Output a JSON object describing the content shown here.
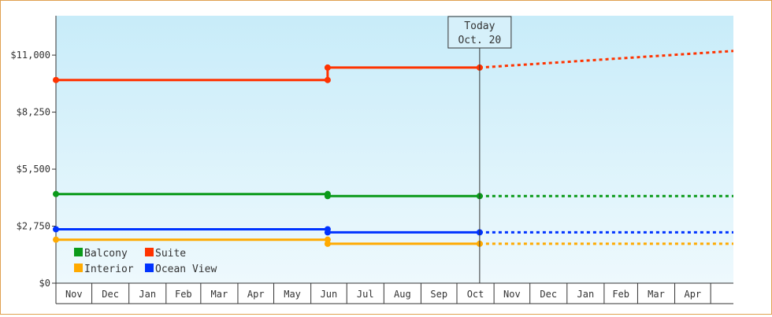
{
  "chart_data": {
    "type": "line",
    "title": "",
    "xlabel": "",
    "ylabel": "",
    "ylim": [
      0,
      12900
    ],
    "yticks": [
      {
        "value": 0,
        "label": "$0"
      },
      {
        "value": 2750,
        "label": "$2,750"
      },
      {
        "value": 5500,
        "label": "$5,500"
      },
      {
        "value": 8250,
        "label": "$8,250"
      },
      {
        "value": 11000,
        "label": "$11,000"
      }
    ],
    "x_axis": {
      "start": "2019-11-01",
      "end": "2021-05-20",
      "month_labels": [
        "Nov",
        "Dec",
        "Jan",
        "Feb",
        "Mar",
        "Apr",
        "May",
        "Jun",
        "Jul",
        "Aug",
        "Sep",
        "Oct",
        "Nov",
        "Dec",
        "Jan",
        "Feb",
        "Mar",
        "Apr"
      ]
    },
    "today": {
      "date": "2020-10-20",
      "label_line1": "Today",
      "label_line2": "Oct. 20"
    },
    "grid": false,
    "legend": "bottom-left",
    "series": [
      {
        "name": "Balcony",
        "color": "#0a9a1a",
        "points": [
          {
            "x": "2019-11-01",
            "y": 4300
          },
          {
            "x": "2020-06-15",
            "y": 4300
          },
          {
            "x": "2020-06-15",
            "y": 4200
          },
          {
            "x": "2020-10-20",
            "y": 4200
          }
        ],
        "projection": [
          {
            "x": "2020-10-20",
            "y": 4200
          },
          {
            "x": "2021-05-20",
            "y": 4200
          }
        ]
      },
      {
        "name": "Suite",
        "color": "#ff3300",
        "points": [
          {
            "x": "2019-11-01",
            "y": 9800
          },
          {
            "x": "2020-06-15",
            "y": 9800
          },
          {
            "x": "2020-06-15",
            "y": 10400
          },
          {
            "x": "2020-10-20",
            "y": 10400
          }
        ],
        "projection": [
          {
            "x": "2020-10-20",
            "y": 10400
          },
          {
            "x": "2021-05-20",
            "y": 11200
          }
        ]
      },
      {
        "name": "Interior",
        "color": "#ffaa00",
        "points": [
          {
            "x": "2019-11-01",
            "y": 2100
          },
          {
            "x": "2020-06-15",
            "y": 2100
          },
          {
            "x": "2020-06-15",
            "y": 1900
          },
          {
            "x": "2020-10-20",
            "y": 1900
          }
        ],
        "projection": [
          {
            "x": "2020-10-20",
            "y": 1900
          },
          {
            "x": "2021-05-20",
            "y": 1900
          }
        ]
      },
      {
        "name": "Ocean View",
        "color": "#0033ff",
        "points": [
          {
            "x": "2019-11-01",
            "y": 2600
          },
          {
            "x": "2020-06-15",
            "y": 2600
          },
          {
            "x": "2020-06-15",
            "y": 2450
          },
          {
            "x": "2020-10-20",
            "y": 2450
          }
        ],
        "projection": [
          {
            "x": "2020-10-20",
            "y": 2450
          },
          {
            "x": "2021-05-20",
            "y": 2450
          }
        ]
      }
    ]
  }
}
